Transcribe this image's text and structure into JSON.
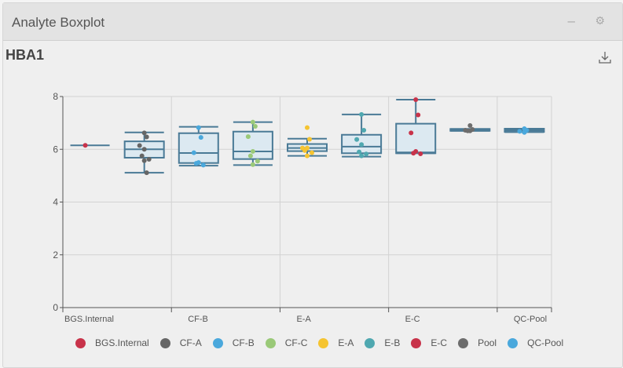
{
  "panel": {
    "title": "Analyte Boxplot",
    "minimize_icon": "minus-icon",
    "settings_icon": "gears-icon"
  },
  "chart_title": "HBA1",
  "download_icon": "download-icon",
  "chart_data": {
    "type": "box",
    "title": "HBA1",
    "categories": [
      "BGS.Internal",
      "CF-A",
      "CF-B",
      "CF-C",
      "E-A",
      "E-B",
      "E-C",
      "Pool",
      "QC-Pool"
    ],
    "x_tick_labels": [
      "BGS.Internal",
      "CF-B",
      "E-A",
      "E-C",
      "QC-Pool"
    ],
    "ylim": [
      0,
      8
    ],
    "y_ticks": [
      0,
      2,
      4,
      6,
      8
    ],
    "grid": true,
    "legend_position": "bottom",
    "colors": {
      "BGS.Internal": "#c8334a",
      "CF-A": "#666666",
      "CF-B": "#4aa8dc",
      "CF-C": "#9ac978",
      "E-A": "#f5c431",
      "E-B": "#4fa8b0",
      "E-C": "#c8334a",
      "Pool": "#6d6d6d",
      "QC-Pool": "#4aa8dc"
    },
    "box_color": "#4a7a96",
    "series": [
      {
        "name": "BGS.Internal",
        "min": 6.15,
        "q1": 6.15,
        "median": 6.15,
        "q3": 6.15,
        "max": 6.15,
        "points": [
          6.15
        ]
      },
      {
        "name": "CF-A",
        "min": 5.11,
        "q1": 5.68,
        "median": 6.0,
        "q3": 6.3,
        "max": 6.64,
        "points": [
          6.62,
          6.47,
          6.14,
          6.0,
          5.75,
          5.62,
          5.57,
          5.11
        ]
      },
      {
        "name": "CF-B",
        "min": 5.38,
        "q1": 5.48,
        "median": 5.86,
        "q3": 6.61,
        "max": 6.85,
        "points": [
          6.82,
          6.45,
          5.87,
          5.5,
          5.47,
          5.4
        ]
      },
      {
        "name": "CF-C",
        "min": 5.4,
        "q1": 5.63,
        "median": 5.92,
        "q3": 6.67,
        "max": 7.03,
        "points": [
          7.03,
          6.87,
          6.48,
          5.92,
          5.75,
          5.55,
          5.42
        ]
      },
      {
        "name": "E-A",
        "min": 5.75,
        "q1": 5.93,
        "median": 6.05,
        "q3": 6.2,
        "max": 6.4,
        "points": [
          6.82,
          6.38,
          6.05,
          6.05,
          5.95,
          5.87,
          5.75
        ]
      },
      {
        "name": "E-B",
        "min": 5.72,
        "q1": 5.85,
        "median": 6.1,
        "q3": 6.55,
        "max": 7.32,
        "points": [
          7.32,
          6.72,
          6.37,
          6.18,
          5.9,
          5.82,
          5.75
        ]
      },
      {
        "name": "E-C",
        "min": 5.85,
        "q1": 5.85,
        "median": 5.88,
        "q3": 6.97,
        "max": 7.88,
        "points": [
          7.88,
          7.3,
          6.62,
          5.92,
          5.85,
          5.83
        ]
      },
      {
        "name": "Pool",
        "min": 6.7,
        "q1": 6.7,
        "median": 6.73,
        "q3": 6.77,
        "max": 6.77,
        "points": [
          6.9,
          6.75,
          6.72,
          6.7,
          6.7
        ]
      },
      {
        "name": "QC-Pool",
        "min": 6.65,
        "q1": 6.66,
        "median": 6.72,
        "q3": 6.78,
        "max": 6.78,
        "points": [
          6.78,
          6.72,
          6.68,
          6.64
        ]
      }
    ]
  },
  "legend": [
    {
      "label": "BGS.Internal",
      "color": "#c8334a"
    },
    {
      "label": "CF-A",
      "color": "#666666"
    },
    {
      "label": "CF-B",
      "color": "#4aa8dc"
    },
    {
      "label": "CF-C",
      "color": "#9ac978"
    },
    {
      "label": "E-A",
      "color": "#f5c431"
    },
    {
      "label": "E-B",
      "color": "#4fa8b0"
    },
    {
      "label": "E-C",
      "color": "#c8334a"
    },
    {
      "label": "Pool",
      "color": "#6d6d6d"
    },
    {
      "label": "QC-Pool",
      "color": "#4aa8dc"
    }
  ]
}
